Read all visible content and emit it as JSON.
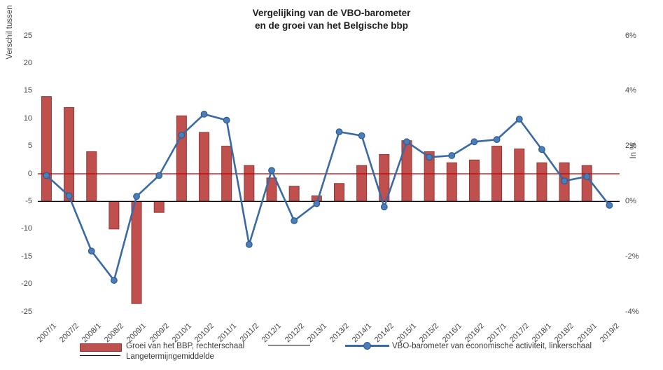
{
  "title": {
    "line1": "Vergelijking van de VBO-barometer",
    "line2": "en de groei van het Belgische bbp"
  },
  "axes": {
    "left": {
      "title": "Verschil tussen",
      "ticks": [
        "25",
        "20",
        "15",
        "10",
        "5",
        "0",
        "-5",
        "-10",
        "-15",
        "-20",
        "-25"
      ],
      "range": [
        -25,
        25
      ]
    },
    "right": {
      "title": "In %",
      "ticks": [
        "6%",
        "4%",
        "2%",
        "0%",
        "-2%",
        "-4%"
      ],
      "range_percent": [
        -4,
        6
      ]
    },
    "x": {
      "categories": [
        "2007/1",
        "2007/2",
        "2008/1",
        "2008/2",
        "2009/1",
        "2009/2",
        "2010/1",
        "2010/2",
        "2011/1",
        "2011/2",
        "2012/1",
        "2012/2",
        "2013/1",
        "2013/2",
        "2014/1",
        "2014/2",
        "2015/1",
        "2015/2",
        "2016/1",
        "2016/2",
        "2017/1",
        "2017/2",
        "2018/1",
        "2018/2",
        "2019/1",
        "2019/2"
      ]
    }
  },
  "legend": {
    "gdp_label": "Groei van het BBP, rechterschaal",
    "unlabeled_line_label": "",
    "vbo_label": "VBO-barometer van economische activiteit, linkerschaal",
    "avg_label": "Langetermijngemiddelde"
  },
  "colors": {
    "bar_fill": "#bf504d",
    "bar_border": "#8c3836",
    "line": "#3a6aa5",
    "marker_fill": "#4a7ebb",
    "marker_border": "#2d5a8e",
    "avg_line": "#c00000",
    "zero_line": "#000000",
    "text": "#474747"
  },
  "chart_data": {
    "type": "bar+line combo",
    "categories": [
      "2007/1",
      "2007/2",
      "2008/1",
      "2008/2",
      "2009/1",
      "2009/2",
      "2010/1",
      "2010/2",
      "2011/1",
      "2011/2",
      "2012/1",
      "2012/2",
      "2013/1",
      "2013/2",
      "2014/1",
      "2014/2",
      "2015/1",
      "2015/2",
      "2016/1",
      "2016/2",
      "2017/1",
      "2017/2",
      "2018/1",
      "2018/2",
      "2019/1",
      "2019/2"
    ],
    "series": [
      {
        "name": "Groei van het BBP, rechterschaal",
        "type": "bar",
        "axis": "right",
        "unit": "%",
        "values": [
          3.8,
          3.4,
          1.8,
          -1.0,
          -3.7,
          -0.4,
          3.1,
          2.5,
          2.0,
          1.3,
          0.85,
          0.55,
          0.2,
          0.65,
          1.3,
          1.7,
          2.2,
          1.8,
          1.4,
          1.5,
          2.0,
          1.9,
          1.4,
          1.4,
          1.3,
          null
        ]
      },
      {
        "name": "VBO-barometer van economische activiteit, linkerschaal",
        "type": "line",
        "axis": "left",
        "values": [
          -0.3,
          -4.0,
          -14.0,
          -19.3,
          -4.1,
          -0.3,
          7.0,
          10.8,
          9.7,
          -12.8,
          0.6,
          -8.5,
          -5.4,
          7.6,
          6.9,
          -6.0,
          5.8,
          3.0,
          3.3,
          5.8,
          6.2,
          9.9,
          4.4,
          -1.3,
          -0.5,
          -5.7
        ]
      },
      {
        "name": "Langetermijngemiddelde",
        "type": "line-constant",
        "axis": "left",
        "value": 0
      },
      {
        "name": "",
        "type": "line-constant",
        "axis": "right",
        "value": 0
      }
    ],
    "title": "Vergelijking van de VBO-barometer en de groei van het Belgische bbp",
    "xlabel": "",
    "ylabel_left": "Verschil tussen",
    "ylabel_right": "In %",
    "ylim_left": [
      -25,
      25
    ],
    "ylim_right_percent": [
      -4,
      6
    ],
    "grid": false,
    "legend_position": "bottom"
  }
}
